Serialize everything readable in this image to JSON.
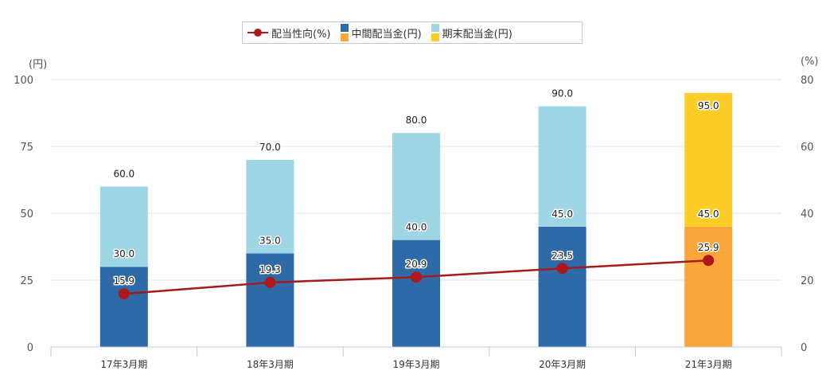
{
  "chart_data": {
    "type": "bar",
    "categories": [
      "17年3月期",
      "18年3月期",
      "19年3月期",
      "20年3月期",
      "21年3月期"
    ],
    "series": [
      {
        "name": "中間配当金(円)",
        "values": [
          30.0,
          35.0,
          40.0,
          45.0,
          45.0
        ]
      },
      {
        "name": "期末配当金(円)",
        "values": [
          30.0,
          35.0,
          40.0,
          45.0,
          50.0
        ]
      },
      {
        "name": "配当性向(%)",
        "type": "line",
        "axis": "right",
        "values": [
          15.9,
          19.3,
          20.9,
          23.5,
          25.9
        ]
      }
    ],
    "total_labels": [
      "60.0",
      "70.0",
      "80.0",
      "90.0",
      "95.0"
    ],
    "interim_labels": [
      "30.0",
      "35.0",
      "40.0",
      "45.0",
      "45.0"
    ],
    "payout_labels": [
      "15.9",
      "19.3",
      "20.9",
      "23.5",
      "25.9"
    ],
    "y_left": {
      "unit": "(円)",
      "min": 0,
      "max": 100,
      "ticks": [
        "0",
        "25",
        "50",
        "75",
        "100"
      ]
    },
    "y_right": {
      "unit": "(%)",
      "min": 0,
      "max": 80,
      "ticks": [
        "0",
        "20",
        "40",
        "60",
        "80"
      ]
    },
    "grid": true,
    "legend_position": "top-center",
    "forecast_category_index": 4,
    "colors": {
      "interim": "#2e6aa8",
      "final": "#9fd6e6",
      "interim_forecast": "#f9a63b",
      "final_forecast": "#fdcd27",
      "line": "#a31b1b",
      "marker": "#b0171b",
      "grid": "#e2e2e2",
      "axis": "#c0c8d8"
    }
  },
  "legend": {
    "payout": "配当性向(%)",
    "interim": "中間配当金(円)",
    "final": "期末配当金(円)"
  }
}
